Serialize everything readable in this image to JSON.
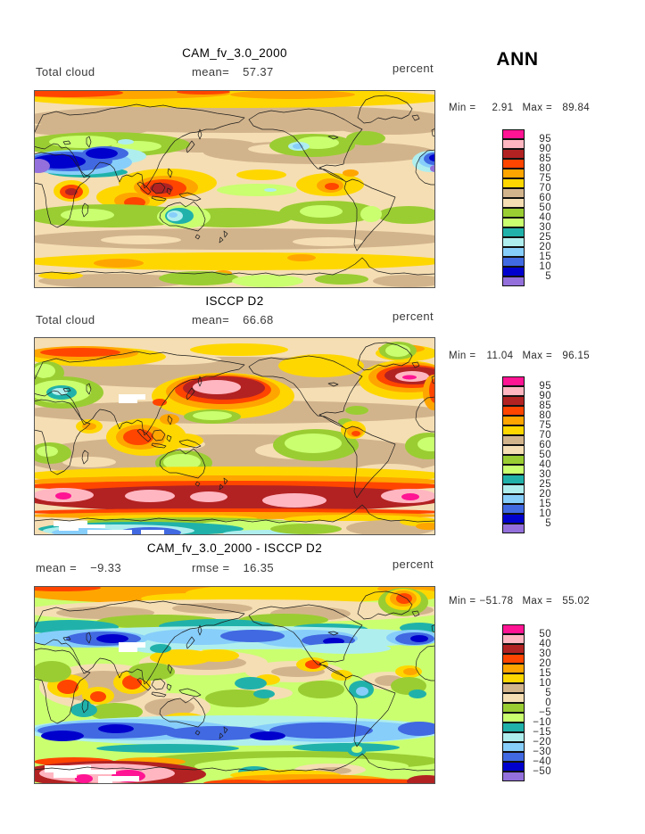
{
  "header": {
    "season": "ANN"
  },
  "palette": {
    "deeppink": "#FF1493",
    "lightpink": "#FFB6C1",
    "firebrick": "#B22222",
    "orangered": "#FF4500",
    "orange": "#FFA500",
    "gold": "#FFD700",
    "tan": "#D2B48C",
    "wheat": "#F5DEB3",
    "yellowgreen": "#9ACD32",
    "dkolivegreen1": "#CAFF70",
    "lightseagreen": "#20B2AA",
    "paleturquoise": "#AFEEEE",
    "lightskyblue": "#87CEFA",
    "royalblue": "#4169E1",
    "mediumblue": "#0000CD",
    "mediumpurple": "#9370DB",
    "white": "#FFFFFF"
  },
  "colorbar_order": [
    "deeppink",
    "lightpink",
    "firebrick",
    "orangered",
    "orange",
    "gold",
    "tan",
    "wheat",
    "yellowgreen",
    "dkolivegreen1",
    "lightseagreen",
    "paleturquoise",
    "lightskyblue",
    "royalblue",
    "mediumblue",
    "mediumpurple"
  ],
  "panels": [
    {
      "title": "CAM_fv_3.0_2000",
      "variable": "Total cloud",
      "stats": [
        {
          "label": "mean=",
          "value": "57.37"
        }
      ],
      "units": "percent",
      "range": {
        "min_label": "Min =",
        "min": "2.91",
        "max_label": "Max =",
        "max": "89.84"
      },
      "colorbar_labels": [
        "95",
        "90",
        "85",
        "80",
        "75",
        "70",
        "60",
        "50",
        "40",
        "30",
        "25",
        "20",
        "15",
        "10",
        "5"
      ]
    },
    {
      "title": "ISCCP D2",
      "variable": "Total cloud",
      "stats": [
        {
          "label": "mean=",
          "value": "66.68"
        }
      ],
      "units": "percent",
      "range": {
        "min_label": "Min =",
        "min": "11.04",
        "max_label": "Max =",
        "max": "96.15"
      },
      "colorbar_labels": [
        "95",
        "90",
        "85",
        "80",
        "75",
        "70",
        "60",
        "50",
        "40",
        "30",
        "25",
        "20",
        "15",
        "10",
        "5"
      ]
    },
    {
      "title": "CAM_fv_3.0_2000 - ISCCP D2",
      "variable": "",
      "stats": [
        {
          "label": "mean =",
          "value": "−9.33"
        },
        {
          "label": "rmse =",
          "value": "16.35"
        }
      ],
      "units": "percent",
      "range": {
        "min_label": "Min =",
        "min": "−51.78",
        "max_label": "Max =",
        "max": "55.02"
      },
      "colorbar_labels": [
        "50",
        "40",
        "30",
        "20",
        "15",
        "10",
        "5",
        "0",
        "−5",
        "−10",
        "−15",
        "−20",
        "−30",
        "−40",
        "−50"
      ]
    }
  ],
  "chart_data": {
    "type": "heatmap",
    "subtype": "filled-contour-world-maps (lat/lon, Pacific-centered)",
    "season": "ANN",
    "variable": "Total cloud",
    "units": "percent",
    "legend_position": "right",
    "panels": [
      {
        "title": "CAM_fv_3.0_2000",
        "mean": 57.37,
        "min": 2.91,
        "max": 89.84,
        "levels": [
          5,
          10,
          15,
          20,
          25,
          30,
          40,
          50,
          60,
          70,
          75,
          80,
          85,
          90,
          95
        ]
      },
      {
        "title": "ISCCP D2",
        "mean": 66.68,
        "min": 11.04,
        "max": 96.15,
        "levels": [
          5,
          10,
          15,
          20,
          25,
          30,
          40,
          50,
          60,
          70,
          75,
          80,
          85,
          90,
          95
        ]
      },
      {
        "title": "CAM_fv_3.0_2000 - ISCCP D2",
        "mean": -9.33,
        "rmse": 16.35,
        "min": -51.78,
        "max": 55.02,
        "levels": [
          -50,
          -40,
          -30,
          -20,
          -15,
          -10,
          -5,
          0,
          5,
          10,
          15,
          20,
          30,
          40,
          50
        ]
      }
    ],
    "palette_low_to_high": [
      "#9370DB",
      "#0000CD",
      "#4169E1",
      "#87CEFA",
      "#AFEEEE",
      "#20B2AA",
      "#CAFF70",
      "#9ACD32",
      "#F5DEB3",
      "#D2B48C",
      "#FFD700",
      "#FFA500",
      "#FF4500",
      "#B22222",
      "#FFB6C1",
      "#FF1493"
    ],
    "missing_data_color": "#FFFFFF"
  }
}
